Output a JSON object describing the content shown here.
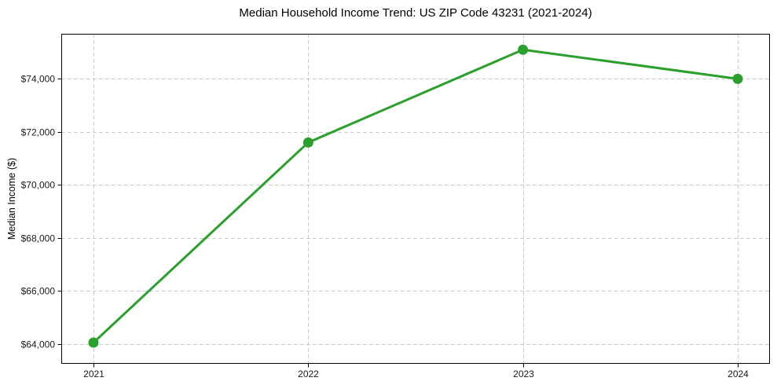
{
  "figure": {
    "background": "#ffffff"
  },
  "chart_data": {
    "type": "line",
    "title": "Median Household Income Trend: US ZIP Code 43231 (2021-2024)",
    "xlabel": "",
    "ylabel": "Median Income ($)",
    "x": [
      2021,
      2022,
      2023,
      2024
    ],
    "series": [
      {
        "values": [
          64050,
          71600,
          75100,
          74000
        ],
        "color": "#2ca02c",
        "marker": "circle"
      }
    ],
    "x_ticks": [
      2021,
      2022,
      2023,
      2024
    ],
    "x_tick_labels": [
      "2021",
      "2022",
      "2023",
      "2024"
    ],
    "y_ticks": [
      64000,
      66000,
      68000,
      70000,
      72000,
      74000
    ],
    "y_tick_labels": [
      "$64,000",
      "$66,000",
      "$68,000",
      "$70,000",
      "$72,000",
      "$74,000"
    ],
    "xlim": [
      2020.85,
      2024.15
    ],
    "ylim": [
      63250,
      75700
    ],
    "grid": {
      "visible": true,
      "line_style": "dashed",
      "color": "#cdcdcd"
    },
    "axis_color": "#000000",
    "tick_label_color": "#1a1a1a",
    "legend": "none"
  }
}
